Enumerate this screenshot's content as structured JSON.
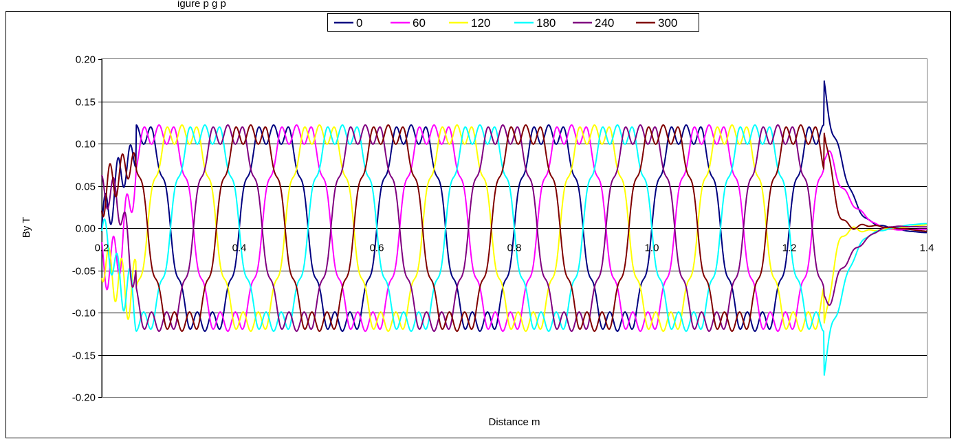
{
  "chart_data": {
    "type": "line",
    "caption_fragment": "igure           p     g p",
    "xlabel": "Distance m",
    "ylabel": "By T",
    "xlim": [
      0.2,
      1.4
    ],
    "ylim": [
      -0.2,
      0.2
    ],
    "x_ticks": [
      "0.2",
      "0.4",
      "0.6",
      "0.8",
      "1.0",
      "1.2",
      "1.4"
    ],
    "y_ticks": [
      "0.20",
      "0.15",
      "0.10",
      "0.05",
      "0.00",
      "-0.05",
      "-0.10",
      "-0.15",
      "-0.20"
    ],
    "y_gridlines": true,
    "legend_position": "top",
    "period_m": 0.2,
    "pole_region_m": [
      0.25,
      1.25
    ],
    "series": [
      {
        "name": "0",
        "color": "#000080",
        "phase_deg": 0
      },
      {
        "name": "60",
        "color": "#ff00ff",
        "phase_deg": 60
      },
      {
        "name": "120",
        "color": "#ffff00",
        "phase_deg": 120
      },
      {
        "name": "180",
        "color": "#00ffff",
        "phase_deg": 180
      },
      {
        "name": "240",
        "color": "#800080",
        "phase_deg": 240
      },
      {
        "name": "300",
        "color": "#800000",
        "phase_deg": 300
      }
    ]
  }
}
